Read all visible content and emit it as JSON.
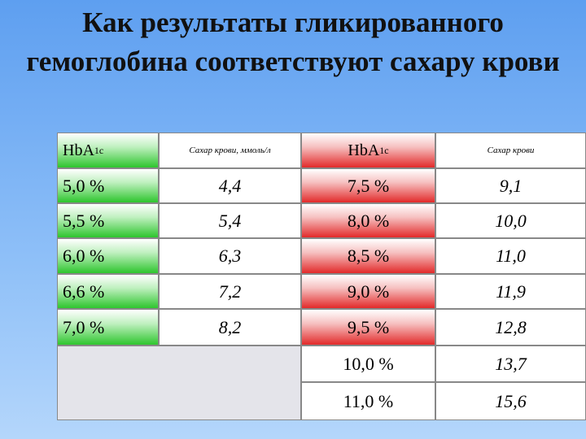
{
  "title": "Как результаты гликированного гемоглобина соответствуют сахару крови",
  "table": {
    "header": [
      {
        "text": "HbA",
        "sub": "1c"
      },
      {
        "text": "Сахар крови, ммоль/л"
      },
      {
        "text": "HbA",
        "sub": "1c"
      },
      {
        "text": "Сахар крови"
      }
    ],
    "rows": [
      [
        "5,0 %",
        "4,4",
        "7,5 %",
        "9,1"
      ],
      [
        "5,5 %",
        "5,4",
        "8,0 %",
        "10,0"
      ],
      [
        "6,0 %",
        "6,3",
        "8,5 %",
        "11,0"
      ],
      [
        "6,6 %",
        "7,2",
        "9,0 %",
        "11,9"
      ],
      [
        "7,0 %",
        "8,2",
        "9,5 %",
        "12,8"
      ]
    ],
    "extra_rows": [
      [
        "10,0 %",
        "13,7"
      ],
      [
        "11,0 %",
        "15,6"
      ]
    ]
  }
}
